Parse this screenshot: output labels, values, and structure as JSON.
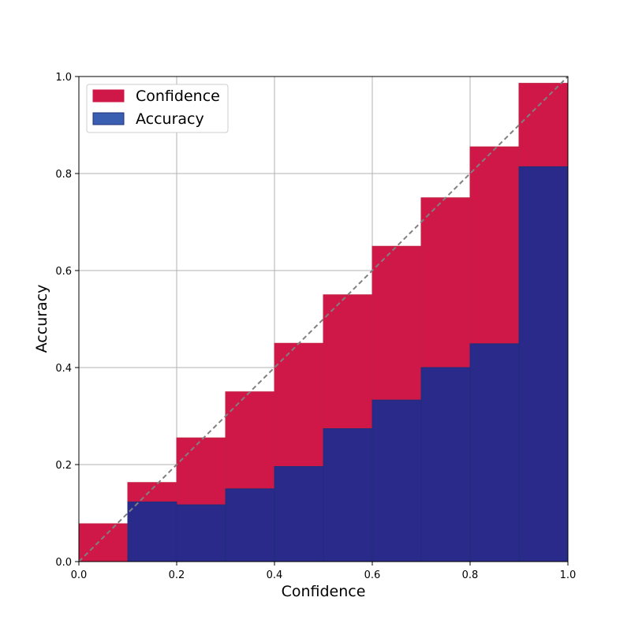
{
  "chart_data": {
    "type": "bar",
    "xlabel": "Confidence",
    "ylabel": "Accuracy",
    "xlim": [
      0.0,
      1.0
    ],
    "ylim": [
      0.0,
      1.0
    ],
    "grid": true,
    "legend_position": "top-left",
    "bin_edges": [
      0.0,
      0.1,
      0.2,
      0.3,
      0.4,
      0.5,
      0.6,
      0.7,
      0.8,
      0.9,
      1.0
    ],
    "x_ticks": [
      "0.0",
      "0.2",
      "0.4",
      "0.6",
      "0.8",
      "1.0"
    ],
    "y_ticks": [
      "0.0",
      "0.2",
      "0.4",
      "0.6",
      "0.8",
      "1.0"
    ],
    "series": [
      {
        "name": "Confidence",
        "color": "#d01848",
        "values": [
          0.078,
          0.163,
          0.255,
          0.35,
          0.45,
          0.55,
          0.65,
          0.75,
          0.855,
          0.986
        ]
      },
      {
        "name": "Accuracy",
        "color": "#292a8a",
        "values": [
          0.0,
          0.123,
          0.117,
          0.15,
          0.196,
          0.274,
          0.333,
          0.4,
          0.449,
          0.814
        ]
      }
    ],
    "reference_line": {
      "style": "dashed",
      "color": "#808080",
      "from": [
        0.0,
        0.0
      ],
      "to": [
        1.0,
        1.0
      ]
    }
  }
}
